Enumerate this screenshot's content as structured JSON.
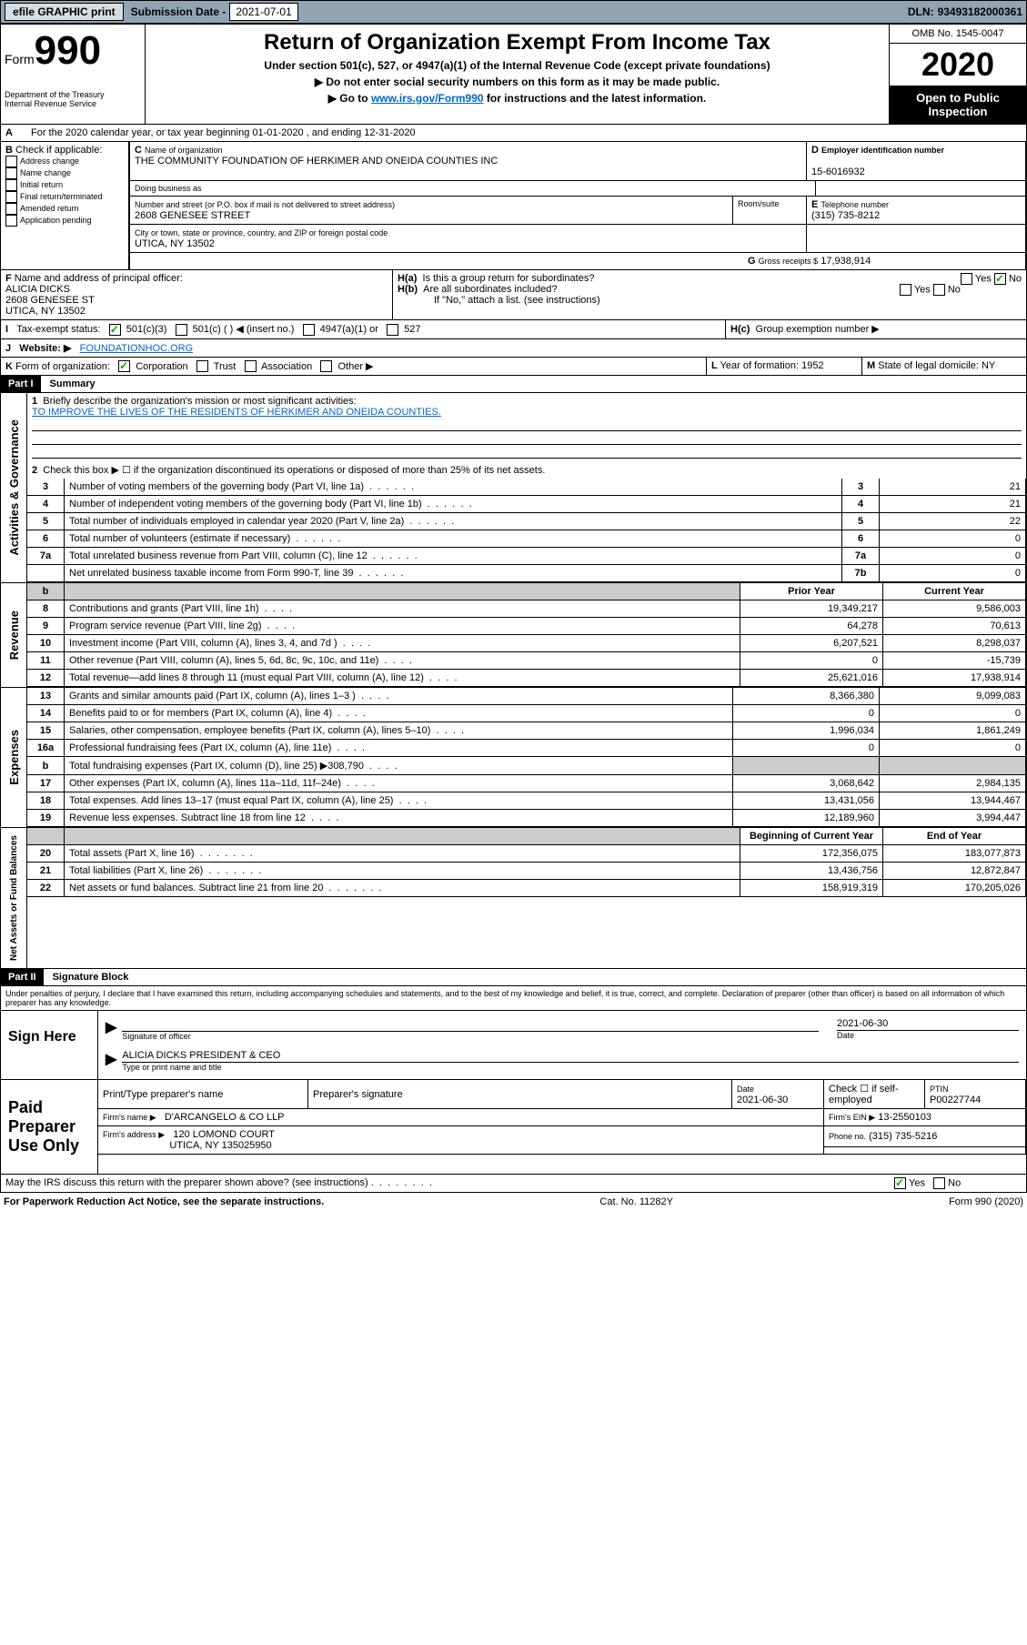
{
  "topbar": {
    "efile": "efile GRAPHIC print",
    "subdate_lbl": "Submission Date - ",
    "subdate": "2021-07-01",
    "dln_lbl": "DLN: ",
    "dln": "93493182000361"
  },
  "header": {
    "form_prefix": "Form",
    "form_no": "990",
    "dept": "Department of the Treasury\nInternal Revenue Service",
    "title": "Return of Organization Exempt From Income Tax",
    "sub1": "Under section 501(c), 527, or 4947(a)(1) of the Internal Revenue Code (except private foundations)",
    "sub2": "▶ Do not enter social security numbers on this form as it may be made public.",
    "sub3_pre": "▶ Go to ",
    "sub3_link": "www.irs.gov/Form990",
    "sub3_post": " for instructions and the latest information.",
    "omb": "OMB No. 1545-0047",
    "year": "2020",
    "inspection": "Open to Public Inspection"
  },
  "A": {
    "text": "For the 2020 calendar year, or tax year beginning 01-01-2020    , and ending 12-31-2020"
  },
  "B": {
    "title": "Check if applicable:",
    "items": [
      "Address change",
      "Name change",
      "Initial return",
      "Final return/terminated",
      "Amended return",
      "Application pending"
    ]
  },
  "C": {
    "name_lbl": "Name of organization",
    "name": "THE COMMUNITY FOUNDATION OF HERKIMER AND ONEIDA COUNTIES INC",
    "dba_lbl": "Doing business as",
    "street_lbl": "Number and street (or P.O. box if mail is not delivered to street address)",
    "room_lbl": "Room/suite",
    "street": "2608 GENESEE STREET",
    "city_lbl": "City or town, state or province, country, and ZIP or foreign postal code",
    "city": "UTICA, NY  13502"
  },
  "D": {
    "lbl": "Employer identification number",
    "val": "15-6016932"
  },
  "E": {
    "lbl": "Telephone number",
    "val": "(315) 735-8212"
  },
  "G": {
    "lbl": "Gross receipts $",
    "val": "17,938,914"
  },
  "F": {
    "lbl": "Name and address of principal officer:",
    "name": "ALICIA DICKS",
    "addr1": "2608 GENESEE ST",
    "addr2": "UTICA, NY  13502"
  },
  "H": {
    "a": "Is this a group return for subordinates?",
    "a_no": true,
    "b": "Are all subordinates included?",
    "b_note": "If \"No,\" attach a list. (see instructions)",
    "c": "Group exemption number ▶"
  },
  "I": {
    "lbl": "Tax-exempt status:",
    "c1": "501(c)(3)",
    "c2": "501(c) (  ) ◀ (insert no.)",
    "c3": "4947(a)(1) or",
    "c4": "527"
  },
  "J": {
    "lbl": "Website: ▶",
    "val": "FOUNDATIONHOC.ORG"
  },
  "K": {
    "lbl": "Form of organization:",
    "c1": "Corporation",
    "c2": "Trust",
    "c3": "Association",
    "c4": "Other ▶"
  },
  "L": {
    "lbl": "Year of formation:",
    "val": "1952"
  },
  "M": {
    "lbl": "State of legal domicile:",
    "val": "NY"
  },
  "partI": {
    "title": "Part I",
    "sub": "Summary"
  },
  "summary": {
    "q1": "Briefly describe the organization's mission or most significant activities:",
    "mission": "TO IMPROVE THE LIVES OF THE RESIDENTS OF HERKIMER AND ONEIDA COUNTIES.",
    "q2": "Check this box ▶ ☐  if the organization discontinued its operations or disposed of more than 25% of its net assets.",
    "rows": [
      {
        "n": "3",
        "d": "Number of voting members of the governing body (Part VI, line 1a)",
        "b": "3",
        "v": "21"
      },
      {
        "n": "4",
        "d": "Number of independent voting members of the governing body (Part VI, line 1b)",
        "b": "4",
        "v": "21"
      },
      {
        "n": "5",
        "d": "Total number of individuals employed in calendar year 2020 (Part V, line 2a)",
        "b": "5",
        "v": "22"
      },
      {
        "n": "6",
        "d": "Total number of volunteers (estimate if necessary)",
        "b": "6",
        "v": "0"
      },
      {
        "n": "7a",
        "d": "Total unrelated business revenue from Part VIII, column (C), line 12",
        "b": "7a",
        "v": "0"
      },
      {
        "n": "",
        "d": "Net unrelated business taxable income from Form 990-T, line 39",
        "b": "7b",
        "v": "0"
      }
    ]
  },
  "revexp": {
    "h1": "Prior Year",
    "h2": "Current Year",
    "revenue": [
      {
        "n": "8",
        "d": "Contributions and grants (Part VIII, line 1h)",
        "p": "19,349,217",
        "c": "9,586,003"
      },
      {
        "n": "9",
        "d": "Program service revenue (Part VIII, line 2g)",
        "p": "64,278",
        "c": "70,613"
      },
      {
        "n": "10",
        "d": "Investment income (Part VIII, column (A), lines 3, 4, and 7d )",
        "p": "6,207,521",
        "c": "8,298,037"
      },
      {
        "n": "11",
        "d": "Other revenue (Part VIII, column (A), lines 5, 6d, 8c, 9c, 10c, and 11e)",
        "p": "0",
        "c": "-15,739"
      },
      {
        "n": "12",
        "d": "Total revenue—add lines 8 through 11 (must equal Part VIII, column (A), line 12)",
        "p": "25,621,016",
        "c": "17,938,914"
      }
    ],
    "expenses": [
      {
        "n": "13",
        "d": "Grants and similar amounts paid (Part IX, column (A), lines 1–3 )",
        "p": "8,366,380",
        "c": "9,099,083"
      },
      {
        "n": "14",
        "d": "Benefits paid to or for members (Part IX, column (A), line 4)",
        "p": "0",
        "c": "0"
      },
      {
        "n": "15",
        "d": "Salaries, other compensation, employee benefits (Part IX, column (A), lines 5–10)",
        "p": "1,996,034",
        "c": "1,861,249"
      },
      {
        "n": "16a",
        "d": "Professional fundraising fees (Part IX, column (A), line 11e)",
        "p": "0",
        "c": "0"
      },
      {
        "n": "b",
        "d": "Total fundraising expenses (Part IX, column (D), line 25) ▶308,790",
        "p": "gray",
        "c": "gray"
      },
      {
        "n": "17",
        "d": "Other expenses (Part IX, column (A), lines 11a–11d, 11f–24e)",
        "p": "3,068,642",
        "c": "2,984,135"
      },
      {
        "n": "18",
        "d": "Total expenses. Add lines 13–17 (must equal Part IX, column (A), line 25)",
        "p": "13,431,056",
        "c": "13,944,467"
      },
      {
        "n": "19",
        "d": "Revenue less expenses. Subtract line 18 from line 12",
        "p": "12,189,960",
        "c": "3,994,447"
      }
    ],
    "h3": "Beginning of Current Year",
    "h4": "End of Year",
    "net": [
      {
        "n": "20",
        "d": "Total assets (Part X, line 16)",
        "p": "172,356,075",
        "c": "183,077,873"
      },
      {
        "n": "21",
        "d": "Total liabilities (Part X, line 26)",
        "p": "13,436,756",
        "c": "12,872,847"
      },
      {
        "n": "22",
        "d": "Net assets or fund balances. Subtract line 21 from line 20",
        "p": "158,919,319",
        "c": "170,205,026"
      }
    ]
  },
  "sidelabels": {
    "gov": "Activities & Governance",
    "rev": "Revenue",
    "exp": "Expenses",
    "net": "Net Assets or Fund Balances"
  },
  "partII": {
    "title": "Part II",
    "sub": "Signature Block",
    "perjury": "Under penalties of perjury, I declare that I have examined this return, including accompanying schedules and statements, and to the best of my knowledge and belief, it is true, correct, and complete. Declaration of preparer (other than officer) is based on all information of which preparer has any knowledge."
  },
  "sign": {
    "here": "Sign Here",
    "sig_lbl": "Signature of officer",
    "date_lbl": "Date",
    "date": "2021-06-30",
    "name": "ALICIA DICKS  PRESIDENT & CEO",
    "name_lbl": "Type or print name and title"
  },
  "paid": {
    "title": "Paid Preparer Use Only",
    "h1": "Print/Type preparer's name",
    "h2": "Preparer's signature",
    "h3": "Date",
    "h4": "Check ☐ if self-employed",
    "h5": "PTIN",
    "date": "2021-06-30",
    "ptin": "P00227744",
    "firm_lbl": "Firm's name   ▶",
    "firm": "D'ARCANGELO & CO LLP",
    "ein_lbl": "Firm's EIN ▶",
    "ein": "13-2550103",
    "addr_lbl": "Firm's address ▶",
    "addr": "120 LOMOND COURT",
    "addr2": "UTICA, NY  135025950",
    "phone_lbl": "Phone no.",
    "phone": "(315) 735-5216"
  },
  "discuss": {
    "q": "May the IRS discuss this return with the preparer shown above? (see instructions)",
    "yes": true
  },
  "footer": {
    "l": "For Paperwork Reduction Act Notice, see the separate instructions.",
    "c": "Cat. No. 11282Y",
    "r": "Form 990 (2020)"
  }
}
